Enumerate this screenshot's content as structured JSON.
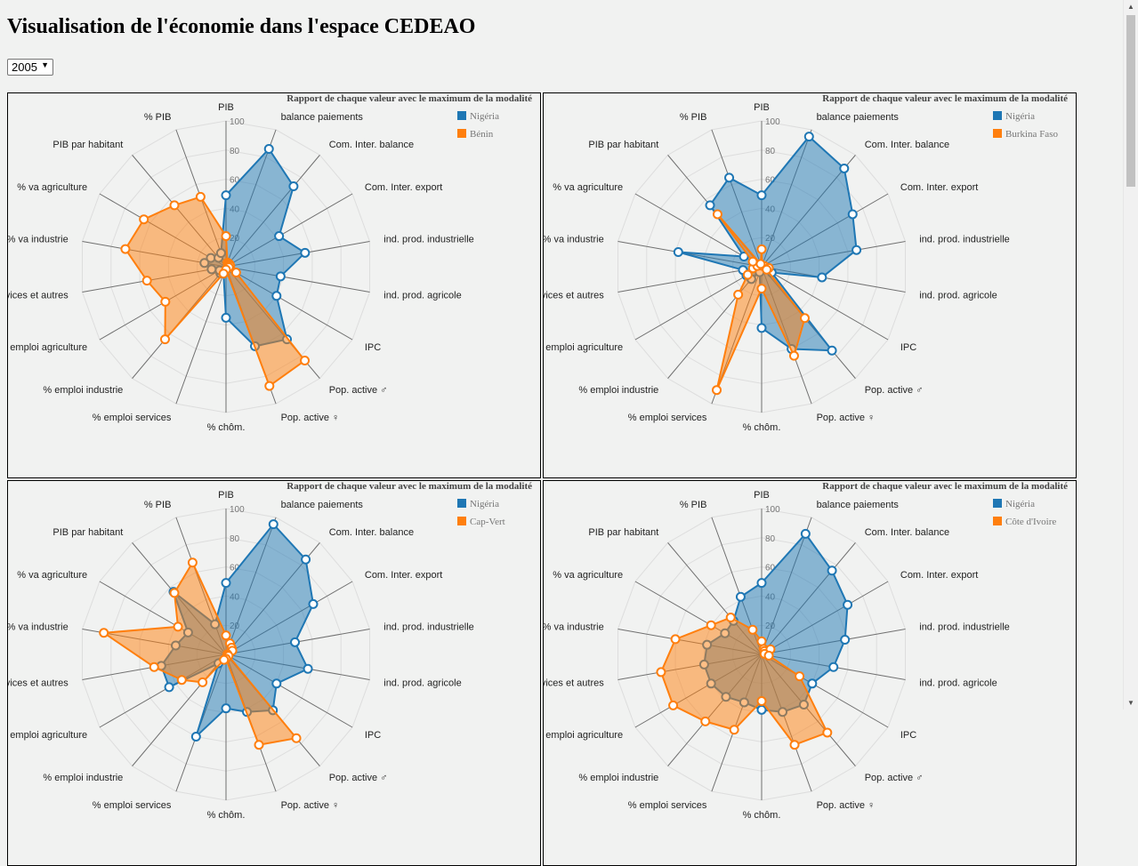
{
  "page": {
    "title": "Visualisation de l'économie dans l'espace CEDEAO"
  },
  "year_select": {
    "value": "2005",
    "arrow": "▼"
  },
  "scrollbar": {
    "up": "▲",
    "down": "▼"
  },
  "colors": {
    "reference": "#1f77b4",
    "compare": "#ff7f0e",
    "axis": "#707070",
    "grid": "#dddddd"
  },
  "chart_data": [
    {
      "type": "radar",
      "title": "Rapport de chaque valeur avec le maximum de la modalité",
      "axes": [
        "PIB",
        "balance paiements",
        "Com. Inter. balance",
        "Com. Inter. export",
        "ind. prod. industrielle",
        "ind. prod. agricole",
        "IPC",
        "Pop. active ♂",
        "Pop. active ♀",
        "% chôm.",
        "% emploi services",
        "% emploi industrie",
        "% emploi agriculture",
        "services et autres",
        "% va industrie",
        "% va agriculture",
        "PIB par habitant",
        "% PIB"
      ],
      "rlim": [
        0,
        100
      ],
      "ticks": [
        "20",
        "40",
        "60",
        "80",
        "100"
      ],
      "series": [
        {
          "name": "Nigéria",
          "values": [
            49,
            86,
            72,
            42,
            55,
            38,
            40,
            65,
            58,
            35,
            5,
            6,
            5,
            10,
            15,
            12,
            8,
            10
          ]
        },
        {
          "name": "Bénin",
          "values": [
            21,
            3,
            3,
            3,
            3,
            2,
            8,
            84,
            87,
            2,
            5,
            65,
            48,
            55,
            70,
            65,
            55,
            51
          ]
        }
      ]
    },
    {
      "type": "radar",
      "title": "Rapport de chaque valeur avec le maximum de la modalité",
      "axes": [
        "PIB",
        "balance paiements",
        "Com. Inter. balance",
        "Com. Inter. export",
        "ind. prod. industrielle",
        "ind. prod. agricole",
        "IPC",
        "Pop. active ♂",
        "Pop. active ♀",
        "% chôm.",
        "% emploi services",
        "% emploi industrie",
        "% emploi agriculture",
        "services et autres",
        "% va industrie",
        "% va agriculture",
        "PIB par habitant",
        "% PIB"
      ],
      "rlim": [
        0,
        100
      ],
      "ticks": [
        "20",
        "40",
        "60",
        "80",
        "100"
      ],
      "series": [
        {
          "name": "Nigéria",
          "values": [
            49,
            95,
            88,
            72,
            66,
            42,
            8,
            75,
            60,
            42,
            4,
            11,
            12,
            13,
            58,
            14,
            55,
            65
          ]
        },
        {
          "name": "Burkina Faso",
          "values": [
            12,
            1,
            1,
            1,
            2,
            5,
            4,
            46,
            65,
            15,
            90,
            25,
            11,
            6,
            3,
            7,
            47,
            2
          ]
        }
      ]
    },
    {
      "type": "radar",
      "title": "Rapport de chaque valeur avec le maximum de la modalité",
      "axes": [
        "PIB",
        "balance paiements",
        "Com. Inter. balance",
        "Com. Inter. export",
        "ind. prod. industrielle",
        "ind. prod. agricole",
        "IPC",
        "Pop. active ♂",
        "Pop. active ♀",
        "% chôm.",
        "% emploi services",
        "% emploi industrie",
        "% emploi agriculture",
        "services et autres",
        "% va industrie",
        "% va agriculture",
        "PIB par habitant",
        "% PIB"
      ],
      "rlim": [
        0,
        100
      ],
      "ticks": [
        "20",
        "40",
        "60",
        "80",
        "100"
      ],
      "series": [
        {
          "name": "Nigéria",
          "values": [
            49,
            95,
            85,
            69,
            48,
            57,
            40,
            50,
            42,
            37,
            60,
            8,
            45,
            45,
            35,
            30,
            56,
            22
          ]
        },
        {
          "name": "Cap-Vert",
          "values": [
            13,
            8,
            6,
            5,
            1,
            1,
            2,
            75,
            66,
            3,
            4,
            25,
            35,
            50,
            85,
            38,
            55,
            67
          ]
        }
      ]
    },
    {
      "type": "radar",
      "title": "Rapport de chaque valeur avec le maximum de la modalité",
      "axes": [
        "PIB",
        "balance paiements",
        "Com. Inter. balance",
        "Com. Inter. export",
        "ind. prod. industrielle",
        "ind. prod. agricole",
        "IPC",
        "Pop. active ♂",
        "Pop. active ♀",
        "% chôm.",
        "% emploi services",
        "% emploi industrie",
        "% emploi agriculture",
        "services et autres",
        "% va industrie",
        "% va agriculture",
        "PIB par habitant",
        "% PIB"
      ],
      "rlim": [
        0,
        100
      ],
      "ticks": [
        "20",
        "40",
        "60",
        "80",
        "100"
      ],
      "series": [
        {
          "name": "Nigéria",
          "values": [
            49,
            88,
            75,
            68,
            58,
            50,
            40,
            45,
            42,
            38,
            35,
            38,
            40,
            40,
            38,
            29,
            30,
            42
          ]
        },
        {
          "name": "Côte d'Ivoire",
          "values": [
            9,
            4,
            3,
            7,
            2,
            5,
            30,
            70,
            66,
            32,
            55,
            60,
            70,
            70,
            60,
            40,
            33,
            18
          ]
        }
      ]
    }
  ]
}
